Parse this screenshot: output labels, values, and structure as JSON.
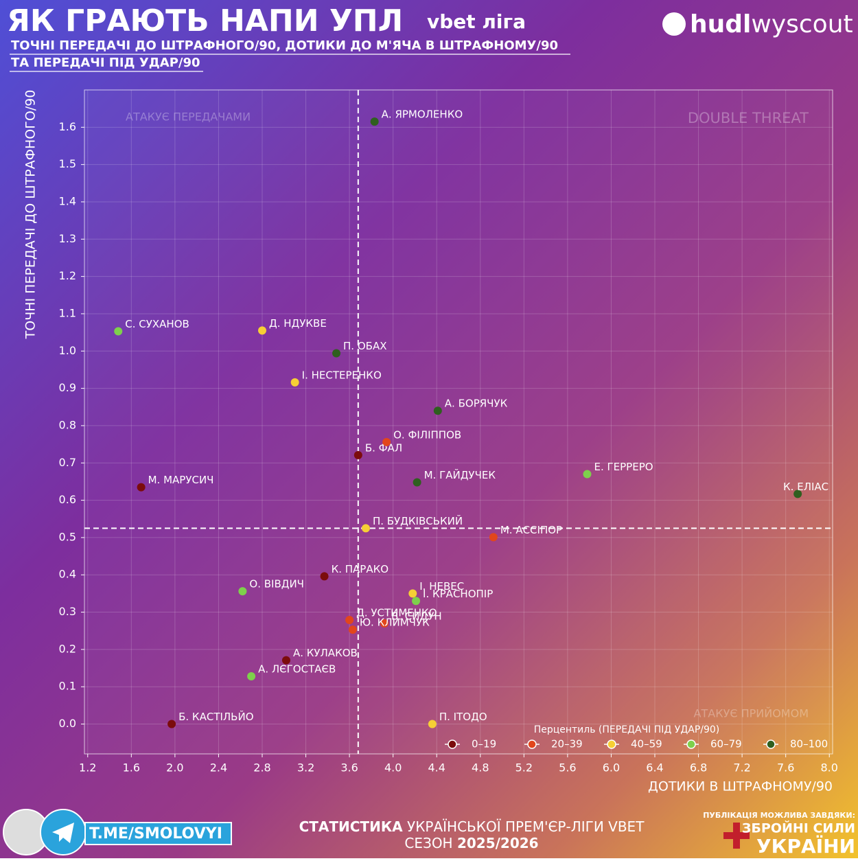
{
  "header": {
    "title": "ЯК ГРАЮТЬ НАПИ УПЛ",
    "league": "vbet ліга",
    "subtitle_line1": "ТОЧНІ ПЕРЕДАЧІ ДО ШТРАФНОГО/90, ДОТИКИ ДО М'ЯЧА В ШТРАФНОМУ/90",
    "subtitle_line2": "ТА ПЕРЕДАЧІ ПІД УДАР/90",
    "brand_bold": "hudl",
    "brand_light": "wyscout"
  },
  "chart_data": {
    "type": "scatter",
    "x_label": "ДОТИКИ В ШТРАФНОМУ/90",
    "y_label": "ТОЧНІ ПЕРЕДАЧІ ДО ШТРАФНОГО/90",
    "xlim": [
      1.17,
      8.03
    ],
    "ylim": [
      -0.08,
      1.7
    ],
    "xticks": [
      1.2,
      1.6,
      {
        "value": 2,
        "label": "2.0"
      },
      2.4,
      2.8,
      3.2,
      3.6,
      {
        "value": 4,
        "label": "4.0"
      },
      4.4,
      4.8,
      5.2,
      5.6,
      {
        "value": 6,
        "label": "6.0"
      },
      6.4,
      6.8,
      7.2,
      7.6,
      {
        "value": 8,
        "label": "8.0"
      }
    ],
    "yticks": [
      {
        "value": 0,
        "label": "0.0"
      },
      0.1,
      0.2,
      0.3,
      0.4,
      0.5,
      0.6,
      0.7,
      0.8,
      0.9,
      {
        "value": 1,
        "label": "1.0"
      },
      1.1,
      1.2,
      1.3,
      1.4,
      1.5,
      1.6
    ],
    "grid": true,
    "reference_lines": {
      "x": 3.68,
      "y": 0.525
    },
    "annotations": [
      "АТАКУЄ ПЕРЕДАЧАМИ",
      "DOUBLE THREAT",
      "АТАКУЄ ПРИЙОМОМ"
    ],
    "legend_title": "Перцентиль (ПЕРЕДАЧІ ПІД УДАР/90)",
    "legend": "bottom-right",
    "series": [
      {
        "name": "0–19",
        "color": "#7b0c0c",
        "x": [
          3.68,
          1.69,
          3.37,
          3.02,
          1.97
        ],
        "values": [
          0.721,
          0.635,
          0.396,
          0.171,
          0.0
        ],
        "labels": [
          "Б. ФАЛ",
          "М. МАРУСИЧ",
          "К. ПАРАКО",
          "А. КУЛАКОВ",
          "Б. КАСТІЛЬЙО"
        ]
      },
      {
        "name": "20–39",
        "color": "#e2461c",
        "x": [
          3.94,
          4.92,
          3.6,
          3.92,
          3.63
        ],
        "values": [
          0.756,
          0.501,
          0.279,
          0.27,
          0.253
        ],
        "labels": [
          "О. ФІЛІППОВ",
          "М. АССІПОР",
          "Д. УСТИМЕНКО",
          "В. СИДУН",
          "Ю. КЛИМЧУК"
        ]
      },
      {
        "name": "40–59",
        "color": "#f6cf35",
        "x": [
          2.8,
          3.1,
          3.75,
          4.18,
          4.36
        ],
        "values": [
          1.055,
          0.916,
          0.525,
          0.35,
          0.0
        ],
        "labels": [
          "Д. НДУКВЕ",
          "І. НЕСТЕРЕНКО",
          "П. БУДКІВСЬКИЙ",
          "І. НЕВЕС",
          "П. ІТОДО"
        ]
      },
      {
        "name": "60–79",
        "color": "#7ed04c",
        "x": [
          1.48,
          5.78,
          2.62,
          4.21,
          2.7
        ],
        "values": [
          1.053,
          0.67,
          0.356,
          0.33,
          0.128
        ],
        "labels": [
          "С. СУХАНОВ",
          "Е. ГЕРРЕРО",
          "О. ВІВДИЧ",
          "І. КРАСНОПІР",
          "А. ЛЄГОСТАЄВ"
        ]
      },
      {
        "name": "80–100",
        "color": "#2f5f1f",
        "x": [
          3.83,
          3.48,
          4.41,
          4.22,
          7.71
        ],
        "values": [
          1.615,
          0.994,
          0.84,
          0.648,
          0.617
        ],
        "labels": [
          "А. ЯРМОЛЕНКО",
          "П. ОБАХ",
          "А. БОРЯЧУК",
          "М. ГАЙДУЧЕК",
          "К. ЕЛІАС"
        ]
      }
    ]
  },
  "footer": {
    "handle": "T.ME/SMOLOVYI",
    "line1_bold": "СТАТИСТИКА",
    "line1_rest": " УКРАЇНСЬКОЇ ПРЕМ'ЄР-ЛІГИ VBET",
    "line2_rest": "СЕЗОН ",
    "line2_bold": "2025/2026",
    "sponsor_note": "ПУБЛІКАЦІЯ МОЖЛИВА ЗАВДЯКИ:",
    "sponsor_line1": "ЗБРОЙНІ СИЛИ",
    "sponsor_line2": "УКРАЇНИ"
  }
}
